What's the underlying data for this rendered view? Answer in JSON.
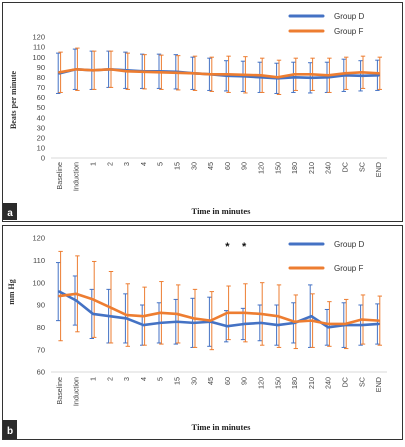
{
  "chart_data": [
    {
      "panel_label": "a",
      "type": "line",
      "title": "",
      "xlabel": "Time in minutes",
      "ylabel": "Beats per minute",
      "ylim": [
        0,
        120
      ],
      "yticks": [
        0,
        10,
        20,
        30,
        40,
        50,
        60,
        70,
        80,
        90,
        100,
        110,
        120
      ],
      "grid": false,
      "legend": "top-right",
      "categories": [
        "Baseline",
        "Induction",
        "1",
        "2",
        "3",
        "4",
        "5",
        "15",
        "30",
        "45",
        "60",
        "90",
        "120",
        "150",
        "180",
        "210",
        "240",
        "DC",
        "SC",
        "END"
      ],
      "series": [
        {
          "name": "Group D",
          "color": "#4472c4",
          "values": [
            84,
            88,
            87,
            88,
            87,
            86,
            86,
            85.5,
            84,
            83,
            81.5,
            81,
            80,
            79,
            80,
            79.5,
            80,
            82,
            81.5,
            82
          ],
          "error": [
            20,
            20,
            19,
            18,
            18,
            17,
            17,
            17,
            16,
            16,
            15,
            15,
            15,
            15,
            15,
            15,
            15,
            16,
            15,
            15
          ]
        },
        {
          "name": "Group F",
          "color": "#ed7d31",
          "values": [
            85,
            88,
            87,
            88,
            86,
            85.5,
            85,
            84.5,
            84,
            83,
            83,
            82.5,
            82,
            80,
            83,
            83,
            82,
            84,
            85,
            84
          ],
          "error": [
            20,
            21,
            19,
            18,
            18,
            17,
            17,
            17,
            17,
            17,
            18,
            18,
            17,
            17,
            16,
            16,
            17,
            16,
            16,
            16
          ]
        }
      ]
    },
    {
      "panel_label": "b",
      "type": "line",
      "title": "",
      "xlabel": "Time in minutes",
      "ylabel": "mm Hg",
      "ylim": [
        60,
        120
      ],
      "yticks": [
        60,
        70,
        80,
        90,
        100,
        110,
        120
      ],
      "grid": false,
      "legend": "top-right",
      "annotations": [
        {
          "category": "60",
          "text": "*"
        },
        {
          "category": "90",
          "text": "*"
        }
      ],
      "categories": [
        "Baseline",
        "Induction",
        "1",
        "2",
        "3",
        "4",
        "5",
        "15",
        "30",
        "45",
        "60",
        "90",
        "120",
        "150",
        "180",
        "210",
        "240",
        "DC",
        "SC",
        "END"
      ],
      "series": [
        {
          "name": "Group D",
          "color": "#4472c4",
          "values": [
            96,
            92,
            86,
            85,
            84,
            81,
            82,
            82.5,
            82,
            82.5,
            80.5,
            81.5,
            82,
            81,
            82,
            85,
            80,
            81,
            81,
            81.5
          ],
          "error": [
            13,
            11,
            11,
            12,
            11,
            9,
            9,
            10,
            11,
            11,
            7,
            7,
            8,
            9,
            9,
            14,
            8,
            10,
            9,
            9
          ]
        },
        {
          "name": "Group F",
          "color": "#ed7d31",
          "values": [
            94,
            95,
            92.5,
            89,
            85.5,
            85,
            86.5,
            86,
            84,
            83,
            86.5,
            86.5,
            86,
            85,
            82.5,
            83,
            81.5,
            81.5,
            83.5,
            83
          ],
          "error": [
            20,
            17,
            17,
            16,
            14,
            13,
            14,
            13,
            13,
            13,
            12,
            13,
            14,
            14,
            12,
            12,
            10,
            11,
            11,
            11
          ]
        }
      ]
    }
  ]
}
